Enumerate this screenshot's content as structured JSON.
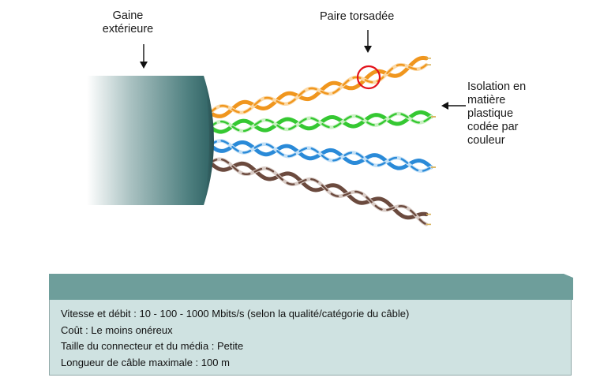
{
  "labels": {
    "jacket": "Gaine\nextérieure",
    "twisted_pair": "Paire torsadée",
    "insulation": "Isolation en\nmatière\nplastique\ncodée par\ncouleur"
  },
  "pairs": [
    {
      "color": "orange",
      "stroke": "#f0961e",
      "stripe": "#fbd9a6"
    },
    {
      "color": "green",
      "stroke": "#35c832",
      "stripe": "#c9f0c2"
    },
    {
      "color": "blue",
      "stroke": "#2a8ad8",
      "stripe": "#c3e0f6"
    },
    {
      "color": "brown",
      "stroke": "#6b4a3e",
      "stripe": "#d8cbc5"
    }
  ],
  "colors": {
    "jacket_dark": "#2f6263",
    "jacket_light": "#ffffff",
    "highlight": "#e3111a",
    "panel_header": "#6e9e9b",
    "panel_body": "#cfe2e1"
  },
  "info": [
    "Vitesse et débit : 10 - 100 - 1000 Mbits/s (selon la qualité/catégorie du câble)",
    "Coût : Le moins onéreux",
    "Taille du connecteur et du média : Petite",
    "Longueur de câble maximale : 100 m"
  ]
}
